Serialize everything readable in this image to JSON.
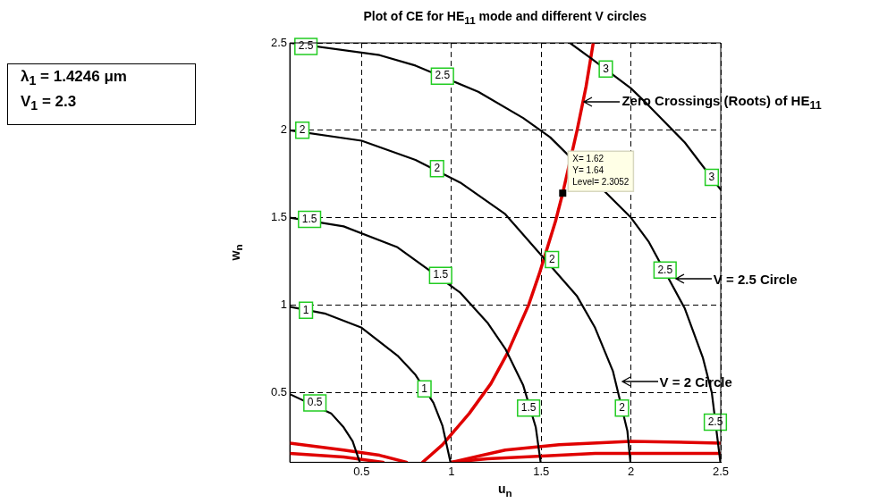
{
  "chart_data": {
    "type": "line",
    "title": "Plot of CE for HE$_{11}$ mode and different V circles",
    "xlabel": "u$_{n}$",
    "ylabel": "w$_{n}$",
    "xlim": [
      0.1,
      2.5
    ],
    "ylim": [
      0.1,
      2.5
    ],
    "xticks": [
      0.5,
      1,
      1.5,
      2,
      2.5
    ],
    "yticks": [
      0.5,
      1,
      1.5,
      2,
      2.5
    ],
    "grid": true,
    "legend": false,
    "marker": "none",
    "series": [
      {
        "color": "#000000",
        "x": [
          0.1,
          0.33,
          0.4,
          0.45,
          0.49
        ],
        "values": [
          0.49,
          0.38,
          0.3,
          0.22,
          0.1
        ]
      },
      {
        "color": "#000000",
        "x": [
          0.1,
          0.3,
          0.5,
          0.7,
          0.8,
          0.9,
          0.95,
          0.995
        ],
        "values": [
          0.99,
          0.95,
          0.87,
          0.71,
          0.6,
          0.44,
          0.31,
          0.1
        ]
      },
      {
        "color": "#000000",
        "x": [
          0.1,
          0.4,
          0.7,
          1.05,
          1.2,
          1.3,
          1.4,
          1.47,
          1.497
        ],
        "values": [
          1.5,
          1.45,
          1.33,
          1.07,
          0.9,
          0.75,
          0.54,
          0.3,
          0.1
        ]
      },
      {
        "color": "#000000",
        "x": [
          0.1,
          0.5,
          0.8,
          1.05,
          1.3,
          1.7,
          1.8,
          1.9,
          1.98,
          1.997
        ],
        "values": [
          2.0,
          1.94,
          1.83,
          1.7,
          1.52,
          1.05,
          0.87,
          0.62,
          0.28,
          0.1
        ]
      },
      {
        "color": "#000000",
        "x": [
          0.1,
          0.6,
          0.8,
          1.15,
          1.4,
          1.55,
          2.0,
          2.1,
          2.3,
          2.4,
          2.45,
          2.498
        ],
        "values": [
          2.5,
          2.43,
          2.37,
          2.22,
          2.07,
          1.96,
          1.5,
          1.36,
          0.98,
          0.7,
          0.5,
          0.1
        ]
      },
      {
        "color": "#000000",
        "x": [
          1.66,
          1.78,
          2.0,
          2.1,
          2.3,
          2.5
        ],
        "values": [
          2.5,
          2.41,
          2.24,
          2.14,
          1.93,
          1.66
        ]
      },
      {
        "color": "#e00000",
        "x": [
          0.84,
          0.95,
          1.1,
          1.22,
          1.31,
          1.43,
          1.49,
          1.58,
          1.62,
          1.7,
          1.75,
          1.79
        ],
        "values": [
          0.1,
          0.2,
          0.38,
          0.55,
          0.72,
          1.0,
          1.18,
          1.48,
          1.64,
          2.0,
          2.25,
          2.5
        ]
      },
      {
        "color": "#e00000",
        "x": [
          0.1,
          0.4,
          0.6,
          0.75
        ],
        "values": [
          0.21,
          0.17,
          0.14,
          0.1
        ]
      },
      {
        "color": "#e00000",
        "x": [
          0.1,
          0.4,
          0.62
        ],
        "values": [
          0.15,
          0.13,
          0.1
        ]
      },
      {
        "color": "#e00000",
        "x": [
          1.0,
          1.3,
          1.6,
          2.0,
          2.5
        ],
        "values": [
          0.1,
          0.17,
          0.2,
          0.22,
          0.21
        ]
      },
      {
        "color": "#e00000",
        "x": [
          1.0,
          1.2,
          1.8,
          2.5
        ],
        "values": [
          0.1,
          0.12,
          0.15,
          0.15
        ]
      }
    ],
    "annotations": [
      "λ$_{1}$ = 1.4246 μm",
      "V$_{1}$ = 2.3",
      {
        "text": "0.5",
        "x": 0.24,
        "y": 0.44
      },
      {
        "text": "1",
        "x": 0.19,
        "y": 0.97
      },
      {
        "text": "1",
        "x": 0.85,
        "y": 0.52
      },
      {
        "text": "1.5",
        "x": 0.21,
        "y": 1.49
      },
      {
        "text": "1.5",
        "x": 0.94,
        "y": 1.17
      },
      {
        "text": "1.5",
        "x": 1.43,
        "y": 0.41
      },
      {
        "text": "2",
        "x": 0.17,
        "y": 2.0
      },
      {
        "text": "2",
        "x": 0.92,
        "y": 1.78
      },
      {
        "text": "2",
        "x": 1.56,
        "y": 1.26
      },
      {
        "text": "2",
        "x": 1.95,
        "y": 0.41
      },
      {
        "text": "2.5",
        "x": 0.19,
        "y": 2.48
      },
      {
        "text": "2.5",
        "x": 0.95,
        "y": 2.31
      },
      {
        "text": "2.5",
        "x": 2.19,
        "y": 1.2
      },
      {
        "text": "2.5",
        "x": 2.47,
        "y": 0.33
      },
      {
        "text": "3",
        "x": 1.86,
        "y": 2.35
      },
      {
        "text": "3",
        "x": 2.45,
        "y": 1.73
      },
      {
        "text": "X= 1.62\nY= 1.64\nLevel= 2.3052",
        "x": 1.62,
        "y": 1.64
      },
      {
        "text": "Zero Crossings (Roots) of HE$_{11}$",
        "x": 1.73,
        "y": 2.16
      },
      {
        "text": "V = 2.5 Circle",
        "x": 2.24,
        "y": 1.15
      },
      {
        "text": "V = 2 Circle",
        "x": 1.94,
        "y": 0.56
      }
    ]
  }
}
